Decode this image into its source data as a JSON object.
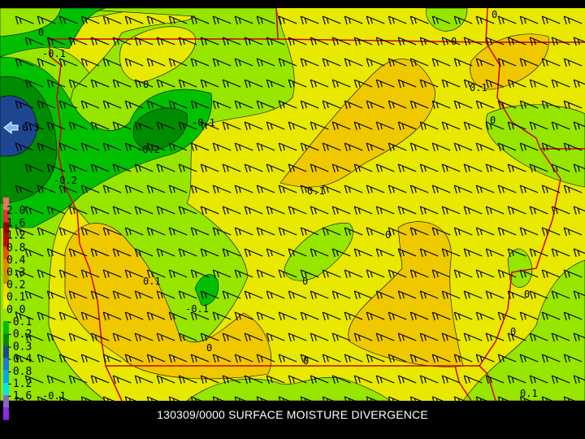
{
  "title": "130309/0000 SURFACE MOISTURE DIVERGENCE",
  "colors": {
    "background": "#000000",
    "yellow": "#e8e800",
    "orange": "#f0c800",
    "light_green": "#96e600",
    "green": "#00c000",
    "dark_green": "#008c00",
    "navy": "#1e4690",
    "border": "#d00000"
  },
  "legend": {
    "labels": [
      "2.0",
      "1.6",
      "1.2",
      "0.8",
      "0.4",
      "0.3",
      "0.2",
      "0.1",
      "0.0",
      "-0.1",
      "-0.2",
      "-0.3",
      "-0.4",
      "-0.8",
      "-1.2",
      "-1.6",
      "-2.0"
    ],
    "colors": [
      "#f07070",
      "#e83030",
      "#a00000",
      "#c80000",
      "#f05000",
      "#f08000",
      "#d09000",
      "#f0d800",
      "#f0f000",
      "#96e600",
      "#00c000",
      "#008c00",
      "#1e4690",
      "#1e78e6",
      "#00aaf0",
      "#00e6f0",
      "#8c64c8",
      "#8c28e6"
    ]
  },
  "contour_labels": [
    "0",
    "-0.1",
    "0",
    "-0.3",
    "-0.1",
    "-0.2",
    "-0.2",
    "0",
    "0.1",
    "0",
    "0",
    "0.1",
    "0",
    "0.1",
    "0",
    "-0.1",
    "-0.1",
    "0.1",
    "0",
    "0",
    "0",
    "0",
    "-0.1",
    "-0.1",
    "0.1"
  ]
}
